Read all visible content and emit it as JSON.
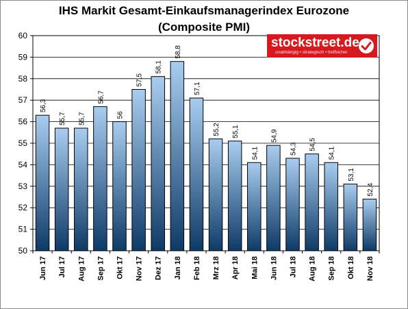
{
  "title_line1": "IHS Markit Gesamt-Einkaufsmanagerindex Eurozone",
  "title_line2": "(Composite PMI)",
  "logo": {
    "text": "stockstreet.de",
    "tagline": "unabhängig • strategisch • treffsicher",
    "icon": "checkmark-icon",
    "color": "#d7191f"
  },
  "chart_data": {
    "type": "bar",
    "categories": [
      "Jun 17",
      "Jul 17",
      "Aug 17",
      "Sep 17",
      "Okt 17",
      "Nov 17",
      "Dez 17",
      "Jan 18",
      "Feb 18",
      "Mrz 18",
      "Apr 18",
      "Mai 18",
      "Jun 18",
      "Jul 18",
      "Aug 18",
      "Sep 18",
      "Okt 18",
      "Nov 18"
    ],
    "values": [
      56.3,
      55.7,
      55.7,
      56.7,
      56.0,
      57.5,
      58.1,
      58.8,
      57.1,
      55.2,
      55.1,
      54.1,
      54.9,
      54.3,
      54.5,
      54.1,
      53.1,
      52.4
    ],
    "value_labels": [
      "56,3",
      "55,7",
      "55,7",
      "56,7",
      "56",
      "57,5",
      "58,1",
      "58,8",
      "57,1",
      "55,2",
      "55,1",
      "54,1",
      "54,9",
      "54,3",
      "54,5",
      "54,1",
      "53,1",
      "52,4"
    ],
    "ylim": [
      50,
      60
    ],
    "yticks": [
      "50",
      "51",
      "52",
      "53",
      "54",
      "55",
      "56",
      "57",
      "58",
      "59",
      "60"
    ],
    "grid": true,
    "bar_color_top": "#a9cdf0",
    "bar_color_bottom": "#0d3a66"
  }
}
